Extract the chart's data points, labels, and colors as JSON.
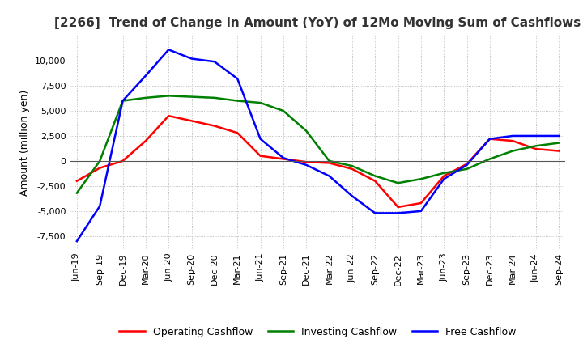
{
  "title": "[2266]  Trend of Change in Amount (YoY) of 12Mo Moving Sum of Cashflows",
  "ylabel": "Amount (million yen)",
  "ylim": [
    -8800,
    12500
  ],
  "yticks": [
    -7500,
    -5000,
    -2500,
    0,
    2500,
    5000,
    7500,
    10000
  ],
  "x_labels": [
    "Jun-19",
    "Sep-19",
    "Dec-19",
    "Mar-20",
    "Jun-20",
    "Sep-20",
    "Dec-20",
    "Mar-21",
    "Jun-21",
    "Sep-21",
    "Dec-21",
    "Mar-22",
    "Jun-22",
    "Sep-22",
    "Dec-22",
    "Mar-23",
    "Jun-23",
    "Sep-23",
    "Dec-23",
    "Mar-24",
    "Jun-24",
    "Sep-24"
  ],
  "operating": [
    -2000,
    -700,
    0,
    2000,
    4500,
    4000,
    3500,
    2800,
    500,
    200,
    -100,
    -200,
    -800,
    -2000,
    -4600,
    -4200,
    -1500,
    -300,
    2200,
    2000,
    1200,
    1000
  ],
  "investing": [
    -3200,
    0,
    6000,
    6300,
    6500,
    6400,
    6300,
    6000,
    5800,
    5000,
    3000,
    0,
    -500,
    -1500,
    -2200,
    -1800,
    -1200,
    -800,
    200,
    1000,
    1500,
    1800
  ],
  "free": [
    -8000,
    -4500,
    6000,
    8500,
    11100,
    10200,
    9900,
    8200,
    2200,
    300,
    -400,
    -1500,
    -3500,
    -5200,
    -5200,
    -5000,
    -1800,
    -400,
    2200,
    2500,
    2500,
    2500
  ],
  "line_colors": {
    "operating": "#ff0000",
    "investing": "#008000",
    "free": "#0000ff"
  },
  "legend_labels": [
    "Operating Cashflow",
    "Investing Cashflow",
    "Free Cashflow"
  ],
  "background_color": "#ffffff",
  "grid_color": "#aaaaaa",
  "title_color": "#333333",
  "title_fontsize": 11,
  "tick_fontsize": 8,
  "ylabel_fontsize": 9
}
